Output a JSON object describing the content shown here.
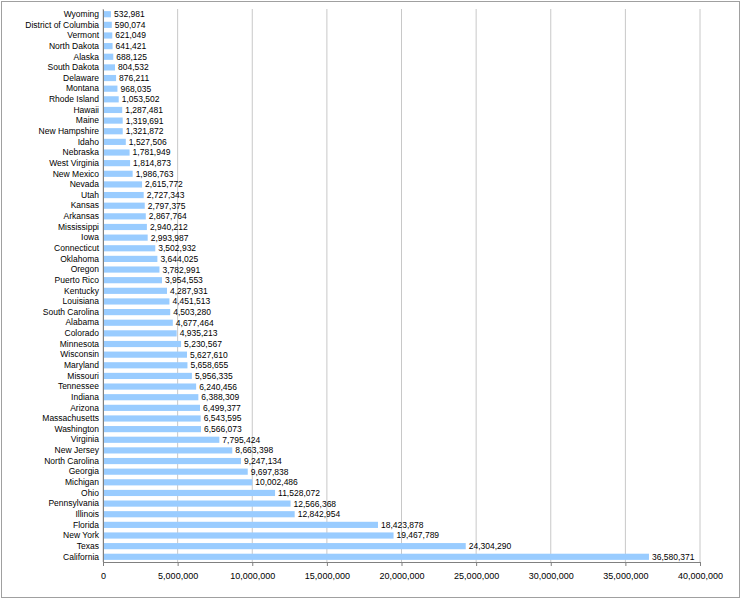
{
  "chart_data": {
    "type": "bar",
    "orientation": "horizontal",
    "grid": true,
    "data_labels": true,
    "color": "#99ccff",
    "categories": [
      "Wyoming",
      "District of Columbia",
      "Vermont",
      "North Dakota",
      "Alaska",
      "South Dakota",
      "Delaware",
      "Montana",
      "Rhode Island",
      "Hawaii",
      "Maine",
      "New Hampshire",
      "Idaho",
      "Nebraska",
      "West Virginia",
      "New Mexico",
      "Nevada",
      "Utah",
      "Kansas",
      "Arkansas",
      "Mississippi",
      "Iowa",
      "Connecticut",
      "Oklahoma",
      "Oregon",
      "Puerto Rico",
      "Kentucky",
      "Louisiana",
      "South Carolina",
      "Alabama",
      "Colorado",
      "Minnesota",
      "Wisconsin",
      "Maryland",
      "Missouri",
      "Tennessee",
      "Indiana",
      "Arizona",
      "Massachusetts",
      "Washington",
      "Virginia",
      "New Jersey",
      "North Carolina",
      "Georgia",
      "Michigan",
      "Ohio",
      "Pennsylvania",
      "Illinois",
      "Florida",
      "New York",
      "Texas",
      "California"
    ],
    "values": [
      532981,
      590074,
      621049,
      641421,
      688125,
      804532,
      876211,
      968035,
      1053502,
      1287481,
      1319691,
      1321872,
      1527506,
      1781949,
      1814873,
      1986763,
      2615772,
      2727343,
      2797375,
      2867764,
      2940212,
      2993987,
      3502932,
      3644025,
      3782991,
      3954553,
      4287931,
      4451513,
      4503280,
      4677464,
      4935213,
      5230567,
      5627610,
      5658655,
      5956335,
      6240456,
      6388309,
      6499377,
      6543595,
      6566073,
      7795424,
      8663398,
      9247134,
      9697838,
      10002486,
      11528072,
      12566368,
      12842954,
      18423878,
      19467789,
      24304290,
      36580371
    ],
    "value_labels": [
      "532,981",
      "590,074",
      "621,049",
      "641,421",
      "688,125",
      "804,532",
      "876,211",
      "968,035",
      "1,053,502",
      "1,287,481",
      "1,319,691",
      "1,321,872",
      "1,527,506",
      "1,781,949",
      "1,814,873",
      "1,986,763",
      "2,615,772",
      "2,727,343",
      "2,797,375",
      "2,867,764",
      "2,940,212",
      "2,993,987",
      "3,502,932",
      "3,644,025",
      "3,782,991",
      "3,954,553",
      "4,287,931",
      "4,451,513",
      "4,503,280",
      "4,677,464",
      "4,935,213",
      "5,230,567",
      "5,627,610",
      "5,658,655",
      "5,956,335",
      "6,240,456",
      "6,388,309",
      "6,499,377",
      "6,543,595",
      "6,566,073",
      "7,795,424",
      "8,663,398",
      "9,247,134",
      "9,697,838",
      "10,002,486",
      "11,528,072",
      "12,566,368",
      "12,842,954",
      "18,423,878",
      "19,467,789",
      "24,304,290",
      "36,580,371"
    ],
    "xlim": [
      0,
      40000000
    ],
    "xticks": [
      0,
      {
        "value": 5000000,
        "label": "5,000,000"
      },
      {
        "value": 10000000,
        "label": "10,000,000"
      },
      {
        "value": 15000000,
        "label": "15,000,000"
      },
      {
        "value": 20000000,
        "label": "20,000,000"
      },
      {
        "value": 25000000,
        "label": "25,000,000"
      },
      {
        "value": 30000000,
        "label": "30,000,000"
      },
      {
        "value": 35000000,
        "label": "35,000,000"
      },
      {
        "value": 40000000,
        "label": "40,000,000"
      }
    ]
  }
}
